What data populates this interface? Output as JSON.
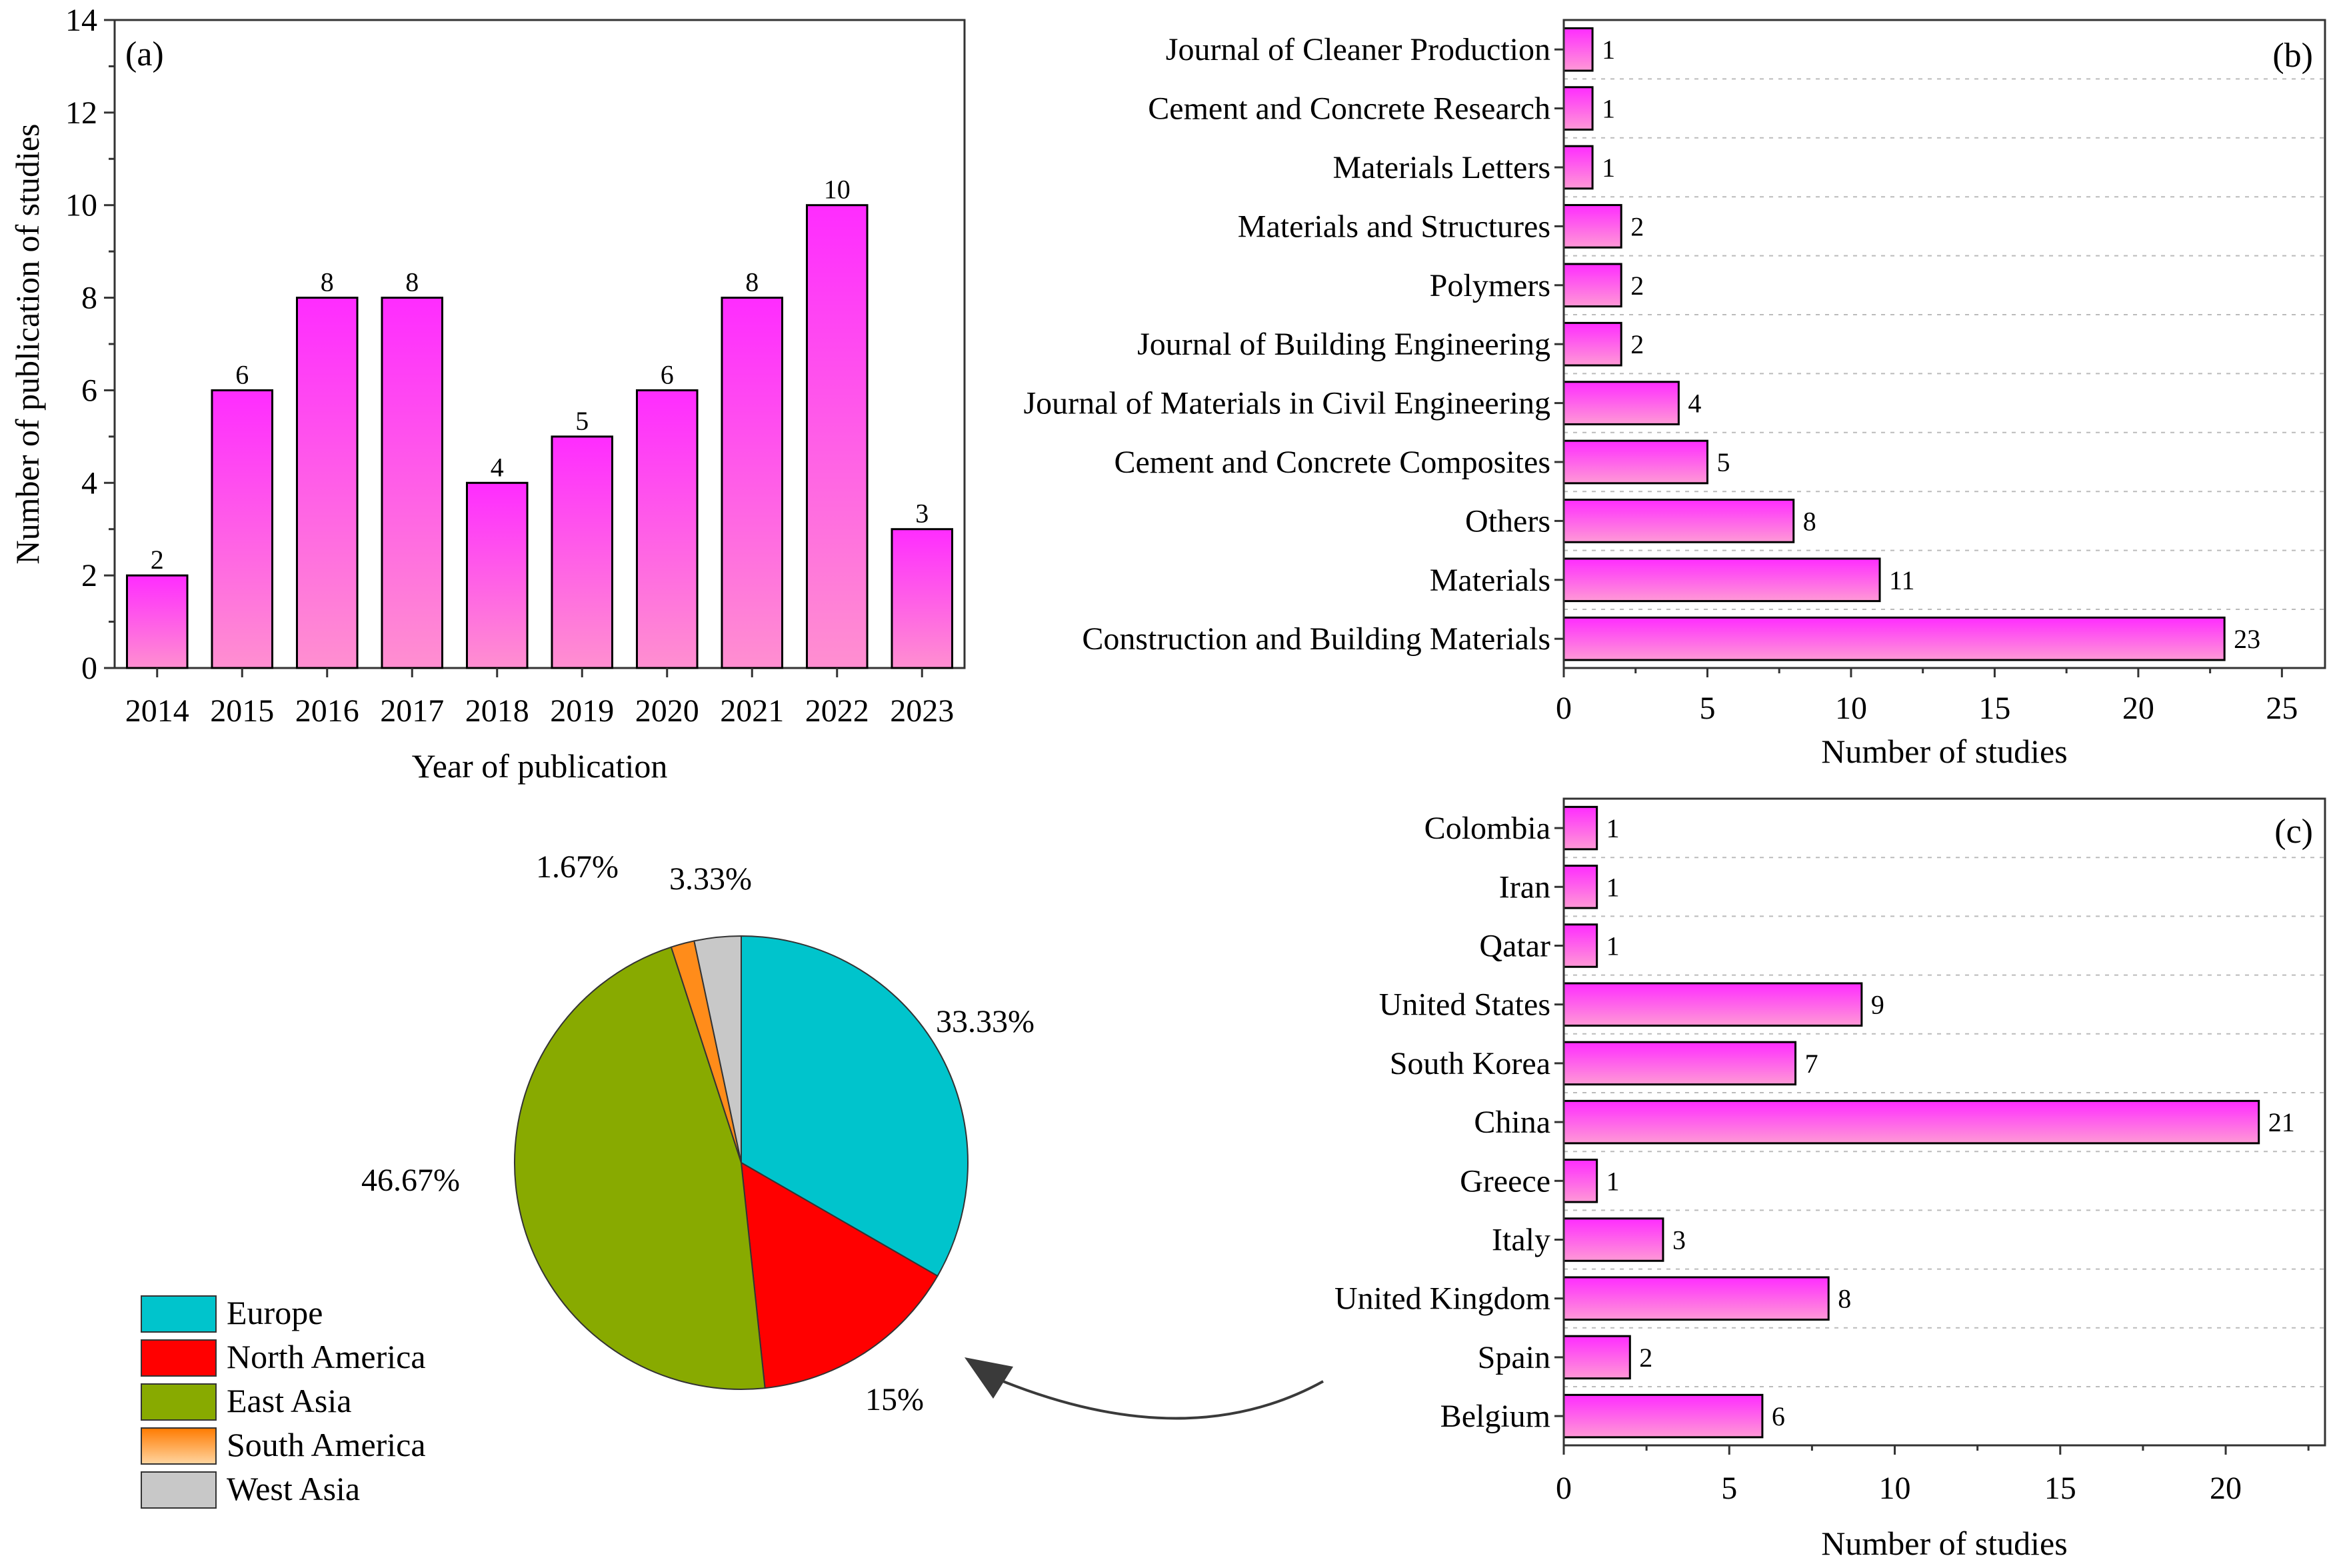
{
  "chart_data": [
    {
      "id": "a",
      "type": "bar",
      "panel_label": "(a)",
      "categories": [
        "2014",
        "2015",
        "2016",
        "2017",
        "2018",
        "2019",
        "2020",
        "2021",
        "2022",
        "2023"
      ],
      "values": [
        2,
        6,
        8,
        8,
        4,
        5,
        6,
        8,
        10,
        3
      ],
      "xlabel": "Year of publication",
      "ylabel": "Number of publication of studies",
      "ylim": [
        0,
        14
      ],
      "yticks": [
        0,
        2,
        4,
        6,
        8,
        10,
        12,
        14
      ],
      "bar_color": "#ff33ff"
    },
    {
      "id": "b",
      "type": "bar",
      "orientation": "horizontal",
      "panel_label": "(b)",
      "categories": [
        "Journal of Cleaner Production",
        "Cement and Concrete Research",
        "Materials Letters",
        "Materials and Structures",
        "Polymers",
        "Journal of Building Engineering",
        "Journal of Materials in Civil Engineering",
        "Cement and Concrete Composites",
        "Others",
        "Materials",
        "Construction and Building Materials"
      ],
      "values": [
        1,
        1,
        1,
        2,
        2,
        2,
        4,
        5,
        8,
        11,
        23
      ],
      "xlabel": "Number of studies",
      "xlim": [
        0,
        26.5
      ],
      "xticks": [
        0,
        5,
        10,
        15,
        20,
        25
      ],
      "grid": true
    },
    {
      "id": "c",
      "type": "bar",
      "orientation": "horizontal",
      "panel_label": "(c)",
      "categories": [
        "Colombia",
        "Iran",
        "Qatar",
        "United States",
        "South Korea",
        "China",
        "Greece",
        "Italy",
        "United Kingdom",
        "Spain",
        "Belgium"
      ],
      "values": [
        1,
        1,
        1,
        9,
        7,
        21,
        1,
        3,
        8,
        2,
        6
      ],
      "xlabel": "Number of studies",
      "xlim": [
        0,
        23
      ],
      "xticks": [
        0,
        5,
        10,
        15,
        20
      ],
      "grid": true
    },
    {
      "id": "d",
      "type": "pie",
      "labels": [
        "Europe",
        "North America",
        "East Asia",
        "South America",
        "West Asia"
      ],
      "values": [
        33.33,
        15,
        46.67,
        1.67,
        3.33
      ],
      "value_labels": [
        "33.33%",
        "15%",
        "46.67%",
        "1.67%",
        "3.33%"
      ],
      "colors": [
        "#00c4cc",
        "#ff0000",
        "#88aa00",
        "#ff8c1a",
        "#c8c8c8"
      ],
      "legend_position": "bottom-left"
    }
  ]
}
